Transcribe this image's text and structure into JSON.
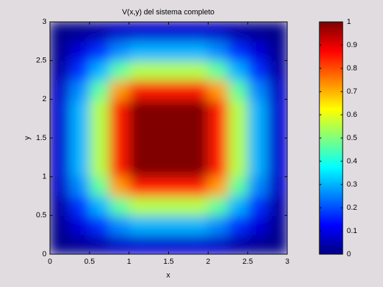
{
  "chart_data": {
    "type": "heatmap",
    "title": "V(x,y) del sistema completo",
    "x_label": "x",
    "y_label": "y",
    "x": [
      0.125,
      0.375,
      0.625,
      0.875,
      1.125,
      1.375,
      1.625,
      1.875,
      2.125,
      2.375,
      2.625,
      2.875
    ],
    "y": [
      0.125,
      0.375,
      0.625,
      0.875,
      1.125,
      1.375,
      1.625,
      1.875,
      2.125,
      2.375,
      2.625,
      2.875
    ],
    "z": [
      [
        0.01,
        0.02,
        0.04,
        0.07,
        0.08,
        0.08,
        0.08,
        0.08,
        0.07,
        0.04,
        0.02,
        0.01
      ],
      [
        0.02,
        0.09,
        0.17,
        0.26,
        0.3,
        0.3,
        0.3,
        0.3,
        0.26,
        0.17,
        0.09,
        0.02
      ],
      [
        0.04,
        0.17,
        0.3,
        0.47,
        0.55,
        0.55,
        0.55,
        0.55,
        0.47,
        0.3,
        0.17,
        0.04
      ],
      [
        0.07,
        0.26,
        0.47,
        0.72,
        0.85,
        0.85,
        0.85,
        0.85,
        0.72,
        0.47,
        0.26,
        0.07
      ],
      [
        0.08,
        0.3,
        0.55,
        0.85,
        1,
        1,
        1,
        1,
        0.85,
        0.55,
        0.3,
        0.08
      ],
      [
        0.08,
        0.3,
        0.55,
        0.85,
        1,
        1,
        1,
        1,
        0.85,
        0.55,
        0.3,
        0.08
      ],
      [
        0.08,
        0.3,
        0.55,
        0.85,
        1,
        1,
        1,
        1,
        0.85,
        0.55,
        0.3,
        0.08
      ],
      [
        0.08,
        0.3,
        0.55,
        0.85,
        1,
        1,
        1,
        1,
        0.85,
        0.55,
        0.3,
        0.08
      ],
      [
        0.07,
        0.26,
        0.47,
        0.72,
        0.85,
        0.85,
        0.85,
        0.85,
        0.72,
        0.47,
        0.26,
        0.07
      ],
      [
        0.04,
        0.17,
        0.3,
        0.47,
        0.55,
        0.55,
        0.55,
        0.55,
        0.47,
        0.3,
        0.17,
        0.04
      ],
      [
        0.02,
        0.09,
        0.17,
        0.26,
        0.3,
        0.3,
        0.3,
        0.3,
        0.26,
        0.17,
        0.09,
        0.02
      ],
      [
        0.01,
        0.02,
        0.04,
        0.07,
        0.08,
        0.08,
        0.08,
        0.08,
        0.07,
        0.04,
        0.02,
        0.01
      ]
    ],
    "colormap": "jet",
    "xlim": [
      0,
      3
    ],
    "ylim": [
      0,
      3
    ],
    "xticks": [
      0,
      0.5,
      1,
      1.5,
      2,
      2.5,
      3
    ],
    "yticks": [
      0,
      0.5,
      1,
      1.5,
      2,
      2.5,
      3
    ],
    "zlim": [
      0,
      1
    ],
    "colorbar_ticks": [
      0,
      0.1,
      0.2,
      0.3,
      0.4,
      0.5,
      0.6,
      0.7,
      0.8,
      0.9,
      1
    ]
  }
}
